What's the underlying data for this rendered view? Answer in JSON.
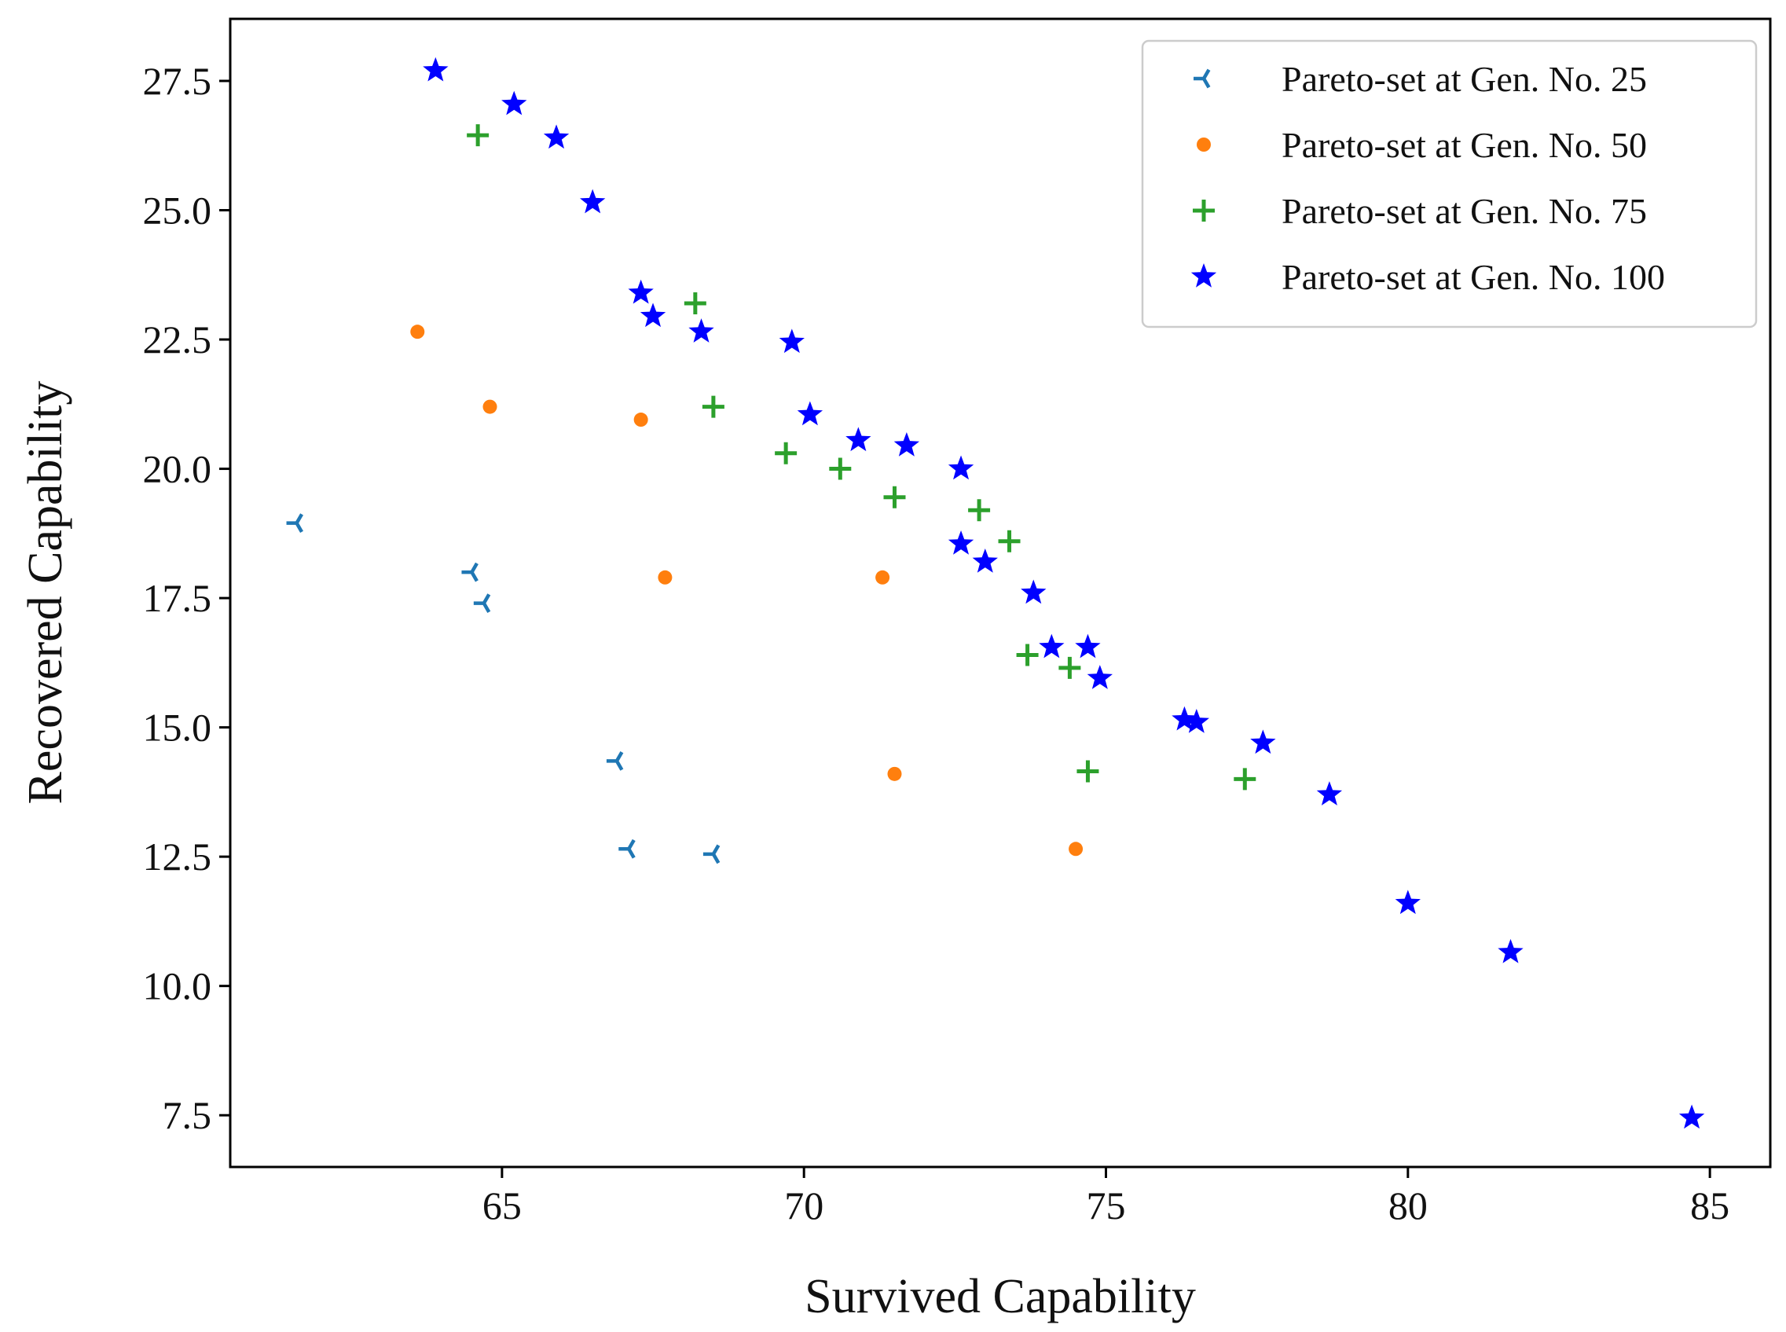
{
  "chart_data": {
    "type": "scatter",
    "title": "",
    "xlabel": "Survived Capability",
    "ylabel": "Recovered Capability",
    "xlim": [
      60.5,
      86.0
    ],
    "ylim": [
      6.5,
      28.7
    ],
    "xticks": [
      65,
      70,
      75,
      80,
      85
    ],
    "xtick_labels": [
      "65",
      "70",
      "75",
      "80",
      "85"
    ],
    "yticks": [
      7.5,
      10.0,
      12.5,
      15.0,
      17.5,
      20.0,
      22.5,
      25.0,
      27.5
    ],
    "ytick_labels": [
      "7.5",
      "10.0",
      "12.5",
      "15.0",
      "17.5",
      "20.0",
      "22.5",
      "25.0",
      "27.5"
    ],
    "grid": false,
    "legend_position": "top-right",
    "series": [
      {
        "name": "Pareto-set at Gen. No. 25",
        "marker": "tri-left",
        "color": "#1f77b4",
        "points": [
          [
            61.6,
            18.95
          ],
          [
            64.5,
            18.0
          ],
          [
            64.7,
            17.4
          ],
          [
            66.9,
            14.35
          ],
          [
            67.1,
            12.65
          ],
          [
            68.5,
            12.55
          ]
        ]
      },
      {
        "name": "Pareto-set at Gen. No. 50",
        "marker": "circle",
        "color": "#ff7f0e",
        "points": [
          [
            63.6,
            22.65
          ],
          [
            64.8,
            21.2
          ],
          [
            67.3,
            20.95
          ],
          [
            67.7,
            17.9
          ],
          [
            71.3,
            17.9
          ],
          [
            71.5,
            14.1
          ],
          [
            74.5,
            12.65
          ]
        ]
      },
      {
        "name": "Pareto-set at Gen. No. 75",
        "marker": "plus",
        "color": "#2ca02c",
        "points": [
          [
            64.6,
            26.45
          ],
          [
            68.2,
            23.2
          ],
          [
            68.5,
            21.2
          ],
          [
            69.7,
            20.3
          ],
          [
            70.6,
            20.0
          ],
          [
            71.5,
            19.45
          ],
          [
            72.9,
            19.2
          ],
          [
            73.4,
            18.6
          ],
          [
            73.7,
            16.4
          ],
          [
            74.4,
            16.15
          ],
          [
            74.7,
            14.15
          ],
          [
            77.3,
            14.0
          ]
        ]
      },
      {
        "name": "Pareto-set at Gen. No. 100",
        "marker": "star",
        "color": "#0000ff",
        "points": [
          [
            63.9,
            27.7
          ],
          [
            65.2,
            27.05
          ],
          [
            65.9,
            26.4
          ],
          [
            66.5,
            25.15
          ],
          [
            67.3,
            23.4
          ],
          [
            67.5,
            22.95
          ],
          [
            68.3,
            22.65
          ],
          [
            69.8,
            22.45
          ],
          [
            70.1,
            21.05
          ],
          [
            70.9,
            20.55
          ],
          [
            71.7,
            20.45
          ],
          [
            72.6,
            20.0
          ],
          [
            72.6,
            18.55
          ],
          [
            73.0,
            18.2
          ],
          [
            73.8,
            17.6
          ],
          [
            74.1,
            16.55
          ],
          [
            74.7,
            16.55
          ],
          [
            74.9,
            15.95
          ],
          [
            76.3,
            15.15
          ],
          [
            76.5,
            15.1
          ],
          [
            77.6,
            14.7
          ],
          [
            78.7,
            13.7
          ],
          [
            80.0,
            11.6
          ],
          [
            81.7,
            10.65
          ],
          [
            84.7,
            7.45
          ]
        ]
      }
    ]
  }
}
